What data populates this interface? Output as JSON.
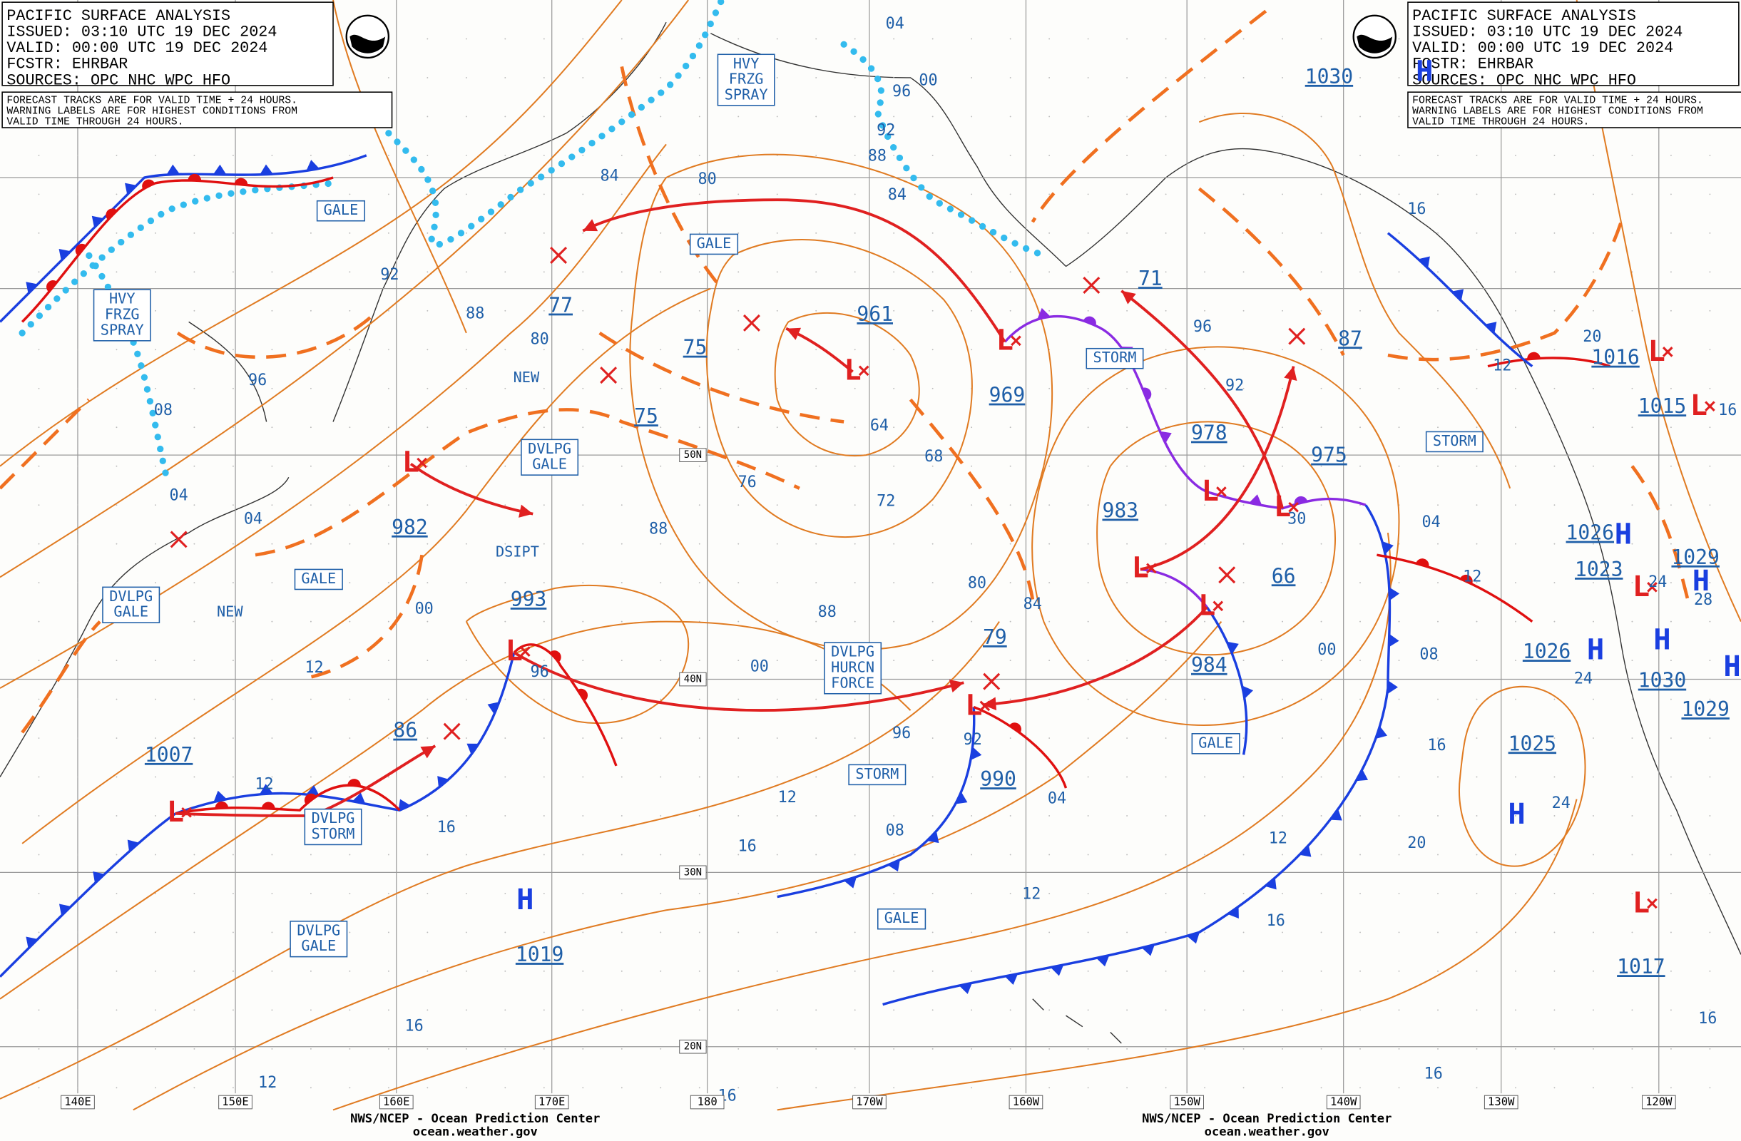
{
  "headers": [
    {
      "lines": [
        "PACIFIC SURFACE ANALYSIS",
        "ISSUED: 03:10 UTC 19 DEC 2024",
        "VALID:  00:00 UTC 19 DEC 2024",
        "FCSTR:  EHRBAR",
        "SOURCES: OPC NHC WPC HFO"
      ],
      "note": [
        "FORECAST TRACKS ARE FOR VALID TIME + 24 HOURS.",
        "WARNING LABELS ARE FOR HIGHEST CONDITIONS FROM",
        "VALID TIME THROUGH 24 HOURS."
      ]
    },
    {
      "lines": [
        "PACIFIC SURFACE ANALYSIS",
        "ISSUED: 03:10 UTC 19 DEC 2024",
        "VALID:  00:00 UTC 19 DEC 2024",
        "FCSTR:  EHRBAR",
        "SOURCES: OPC NHC WPC HFO"
      ],
      "note": [
        "FORECAST TRACKS ARE FOR VALID TIME + 24 HOURS.",
        "WARNING LABELS ARE FOR HIGHEST CONDITIONS FROM",
        "VALID TIME THROUGH 24 HOURS."
      ]
    }
  ],
  "pressure_centers": [
    {
      "symbol": "L",
      "value": "1007"
    },
    {
      "symbol": "L",
      "value": "982"
    },
    {
      "symbol": "L",
      "value": "993"
    },
    {
      "symbol": "L",
      "value": "961"
    },
    {
      "symbol": "L",
      "value": "969"
    },
    {
      "symbol": "L",
      "value": "978"
    },
    {
      "symbol": "L",
      "value": "975"
    },
    {
      "symbol": "L",
      "value": "983"
    },
    {
      "symbol": "L",
      "value": "984"
    },
    {
      "symbol": "L",
      "value": "990"
    },
    {
      "symbol": "L",
      "value": "1016"
    },
    {
      "symbol": "L",
      "value": "1015"
    },
    {
      "symbol": "L",
      "value": "1023"
    },
    {
      "symbol": "L",
      "value": "1017"
    },
    {
      "symbol": "H",
      "value": "1019"
    },
    {
      "symbol": "H",
      "value": "1025"
    },
    {
      "symbol": "H",
      "value": "1026"
    },
    {
      "symbol": "H",
      "value": "1030"
    },
    {
      "symbol": "H",
      "value": "1026"
    },
    {
      "symbol": "H",
      "value": "1029"
    },
    {
      "symbol": "H",
      "value": "1029"
    },
    {
      "symbol": "H",
      "value": "1030"
    }
  ],
  "warnings": [
    [
      "GALE"
    ],
    [
      "HVY",
      "FRZG",
      "SPRAY"
    ],
    [
      "HVY",
      "FRZG",
      "SPRAY"
    ],
    [
      "GALE"
    ],
    [
      "DVLPG",
      "GALE"
    ],
    [
      "GALE"
    ],
    [
      "DVLPG",
      "GALE"
    ],
    [
      "DVLPG",
      "STORM"
    ],
    [
      "DVLPG",
      "GALE"
    ],
    [
      "DVLPG",
      "HURCN",
      "FORCE"
    ],
    [
      "STORM"
    ],
    [
      "GALE"
    ],
    [
      "GALE"
    ],
    [
      "STORM"
    ],
    [
      "STORM"
    ]
  ],
  "notes": [
    "NEW",
    "NEW",
    "DSIPT"
  ],
  "isobar_labels": [
    "04",
    "00",
    "96",
    "92",
    "88",
    "84",
    "84",
    "80",
    "92",
    "88",
    "96",
    "08",
    "04",
    "04",
    "00",
    "12",
    "77",
    "80",
    "75",
    "75",
    "64",
    "68",
    "72",
    "76",
    "88",
    "80",
    "84",
    "88",
    "79",
    "00",
    "96",
    "96",
    "92",
    "04",
    "12",
    "08",
    "12",
    "16",
    "12",
    "86",
    "16",
    "16",
    "12",
    "16",
    "71",
    "96",
    "92",
    "66",
    "00",
    "08",
    "16",
    "12",
    "16",
    "20",
    "04",
    "30",
    "87",
    "16",
    "12",
    "20",
    "12",
    "16",
    "16",
    "24",
    "28",
    "24",
    "24",
    "16"
  ],
  "latitude_labels": [
    "50N",
    "40N",
    "30N",
    "20N"
  ],
  "longitude_labels": [
    "140E",
    "150E",
    "160E",
    "170E",
    "180",
    "170W",
    "160W",
    "150W",
    "140W",
    "130W",
    "120W"
  ],
  "footers": [
    [
      "NWS/NCEP - Ocean Prediction Center",
      "ocean.weather.gov"
    ],
    [
      "NWS/NCEP - Ocean Prediction Center",
      "ocean.weather.gov"
    ]
  ]
}
